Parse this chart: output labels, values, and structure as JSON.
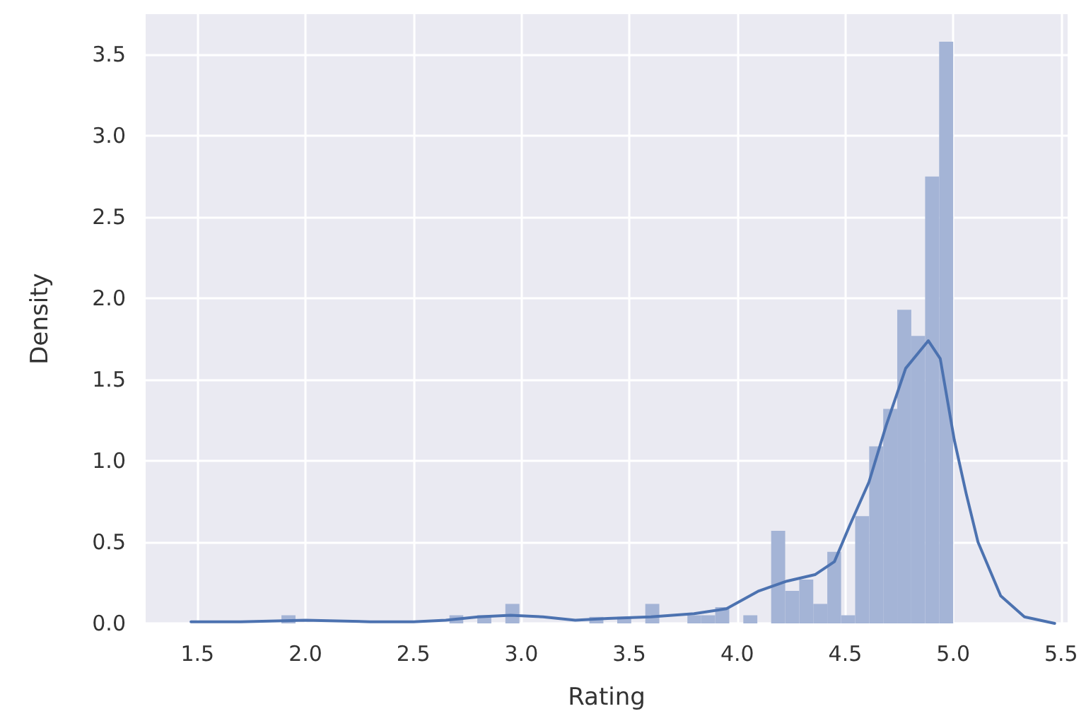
{
  "chart_data": {
    "type": "histogram",
    "xlabel": "Rating",
    "ylabel": "Density",
    "xlim": [
      1.26,
      5.53
    ],
    "xticks": [
      1.5,
      {
        "value": 2,
        "label": "2.0"
      },
      2.5,
      {
        "value": 3,
        "label": "3.0"
      },
      3.5,
      {
        "value": 4,
        "label": "4.0"
      },
      4.5,
      {
        "value": 5,
        "label": "5.0"
      },
      5.5
    ],
    "ylim": [
      0,
      3.75
    ],
    "yticks": [
      {
        "value": 0,
        "label": "0.0"
      },
      0.5,
      {
        "value": 1,
        "label": "1.0"
      },
      1.5,
      {
        "value": 2,
        "label": "2.0"
      },
      2.5,
      {
        "value": 3,
        "label": "3.0"
      },
      3.5
    ],
    "grid": true,
    "series": [
      {
        "color": "#a4b4d6",
        "bins": [
          1.5,
          1.565,
          1.63,
          1.694,
          1.759,
          1.824,
          1.889,
          1.954,
          2.019,
          2.083,
          2.148,
          2.213,
          2.278,
          2.343,
          2.407,
          2.472,
          2.537,
          2.602,
          2.667,
          2.731,
          2.796,
          2.861,
          2.926,
          2.991,
          3.056,
          3.12,
          3.185,
          3.25,
          3.315,
          3.38,
          3.444,
          3.509,
          3.574,
          3.639,
          3.704,
          3.769,
          3.833,
          3.898,
          3.963,
          4.028,
          4.093,
          4.157,
          4.222,
          4.287,
          4.352,
          4.417,
          4.481,
          4.546,
          4.611,
          4.676,
          4.741,
          4.806,
          4.87,
          4.935,
          5.0
        ],
        "values": [
          0,
          0,
          0,
          0,
          0,
          0,
          0.05,
          0,
          0,
          0,
          0,
          0,
          0,
          0,
          0,
          0,
          0,
          0,
          0.05,
          0,
          0.05,
          0,
          0.12,
          0,
          0,
          0,
          0,
          0,
          0.04,
          0,
          0.04,
          0,
          0.12,
          0,
          0,
          0.05,
          0.05,
          0.1,
          0,
          0.05,
          0,
          0.57,
          0.2,
          0.27,
          0.12,
          0.44,
          0.05,
          0.66,
          1.09,
          1.32,
          1.93,
          1.77,
          2.75,
          3.58
        ]
      },
      {
        "type": "line",
        "color": "#4c72b0",
        "x": [
          1.47,
          1.7,
          2.0,
          2.3,
          2.5,
          2.65,
          2.8,
          2.95,
          3.1,
          3.25,
          3.4,
          3.6,
          3.8,
          3.95,
          4.1,
          4.23,
          4.36,
          4.45,
          4.52,
          4.61,
          4.69,
          4.78,
          4.885,
          4.94,
          5.005,
          5.06,
          5.115,
          5.22,
          5.33,
          5.47
        ],
        "values": [
          0.01,
          0.01,
          0.02,
          0.01,
          0.01,
          0.02,
          0.04,
          0.05,
          0.04,
          0.02,
          0.03,
          0.04,
          0.06,
          0.09,
          0.2,
          0.26,
          0.3,
          0.38,
          0.6,
          0.87,
          1.22,
          1.57,
          1.74,
          1.63,
          1.13,
          0.8,
          0.5,
          0.17,
          0.04,
          0.0
        ]
      }
    ]
  }
}
